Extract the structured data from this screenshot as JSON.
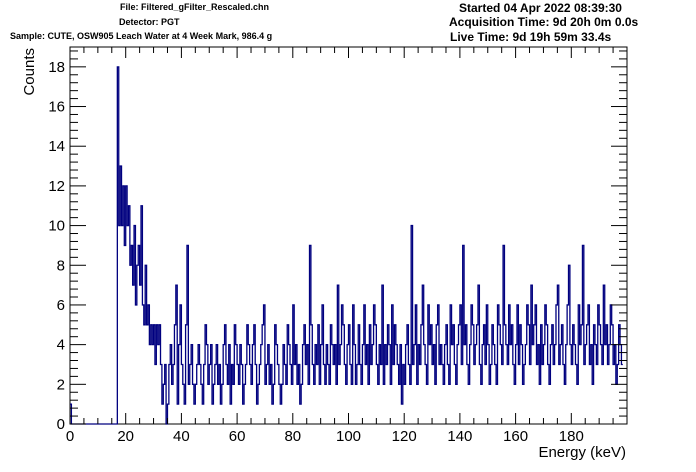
{
  "header": {
    "file": "File: Filtered_gFilter_Rescaled.chn",
    "detector": "Detector: PGT",
    "sample": "Sample: CUTE, OSW905 Leach Water at 4 Week Mark, 986.4 g",
    "started": "Started 04 Apr 2022 08:39:30",
    "acquisition": "Acquisition Time: 9d 20h 0m 0.0s",
    "live": "Live Time: 9d 19h 59m 33.4s"
  },
  "chart_data": {
    "type": "histogram",
    "title": "",
    "xlabel": "Energy (keV)",
    "ylabel": "Counts",
    "xlim": [
      0,
      200
    ],
    "ylim": [
      0,
      19
    ],
    "x_ticks": [
      0,
      20,
      40,
      60,
      80,
      100,
      120,
      140,
      160,
      180
    ],
    "y_ticks": [
      0,
      2,
      4,
      6,
      8,
      10,
      12,
      14,
      16,
      18
    ],
    "line_color": "#00007f",
    "bin_width_keV": 0.5,
    "start_keV": 0,
    "grid": false,
    "counts": [
      1,
      0,
      0,
      0,
      0,
      0,
      0,
      0,
      0,
      0,
      0,
      0,
      0,
      0,
      0,
      0,
      0,
      0,
      0,
      0,
      0,
      0,
      0,
      0,
      0,
      0,
      0,
      0,
      0,
      0,
      0,
      0,
      0,
      0,
      18,
      10,
      13,
      10,
      12,
      9,
      12,
      10,
      11,
      8,
      9,
      7,
      10,
      6,
      8,
      9,
      7,
      11,
      6,
      5,
      8,
      5,
      6,
      4,
      5,
      4,
      5,
      3,
      5,
      4,
      5,
      3,
      1,
      2,
      3,
      0,
      1,
      3,
      4,
      2,
      3,
      5,
      7,
      1,
      4,
      6,
      3,
      2,
      1,
      5,
      9,
      2,
      3,
      4,
      2,
      1,
      2,
      3,
      4,
      3,
      2,
      1,
      3,
      5,
      4,
      2,
      3,
      4,
      1,
      2,
      3,
      4,
      2,
      3,
      1,
      2,
      4,
      5,
      3,
      2,
      4,
      1,
      3,
      2,
      5,
      4,
      3,
      2,
      4,
      3,
      1,
      2,
      3,
      5,
      4,
      3,
      2,
      4,
      5,
      3,
      1,
      2,
      3,
      4,
      5,
      6,
      2,
      3,
      4,
      2,
      3,
      1,
      2,
      5,
      4,
      3,
      2,
      1,
      2,
      4,
      3,
      2,
      5,
      4,
      3,
      2,
      6,
      3,
      4,
      2,
      3,
      1,
      2,
      4,
      5,
      3,
      4,
      2,
      9,
      5,
      3,
      2,
      4,
      3,
      5,
      2,
      4,
      6,
      3,
      2,
      4,
      3,
      2,
      5,
      4,
      3,
      4,
      2,
      7,
      3,
      4,
      6,
      5,
      3,
      2,
      4,
      5,
      3,
      2,
      6,
      4,
      2,
      3,
      5,
      3,
      2,
      4,
      6,
      3,
      4,
      2,
      5,
      3,
      4,
      6,
      5,
      3,
      2,
      4,
      3,
      7,
      2,
      4,
      3,
      5,
      4,
      2,
      6,
      3,
      5,
      4,
      3,
      2,
      4,
      1,
      3,
      2,
      4,
      5,
      3,
      2,
      10,
      3,
      4,
      6,
      2,
      4,
      3,
      5,
      7,
      4,
      3,
      2,
      6,
      4,
      5,
      3,
      4,
      2,
      5,
      6,
      3,
      4,
      3,
      2,
      4,
      5,
      3,
      2,
      6,
      4,
      5,
      3,
      2,
      4,
      5,
      6,
      3,
      9,
      4,
      5,
      3,
      2,
      4,
      6,
      5,
      3,
      4,
      5,
      7,
      3,
      2,
      4,
      5,
      3,
      6,
      4,
      2,
      3,
      5,
      4,
      3,
      2,
      6,
      5,
      4,
      3,
      9,
      5,
      4,
      3,
      6,
      4,
      5,
      3,
      2,
      4,
      6,
      3,
      5,
      4,
      2,
      3,
      4,
      6,
      5,
      3,
      7,
      4,
      5,
      6,
      3,
      4,
      2,
      5,
      3,
      4,
      6,
      5,
      3,
      2,
      4,
      5,
      3,
      4,
      6,
      7,
      3,
      4,
      5,
      3,
      2,
      4,
      6,
      8,
      4,
      3,
      5,
      4,
      3,
      2,
      6,
      4,
      5,
      9,
      3,
      4,
      5,
      6,
      3,
      4,
      2,
      5,
      4,
      3,
      6,
      5,
      4,
      3,
      7,
      4,
      5,
      3,
      4,
      6,
      5,
      3,
      4,
      2,
      3,
      5,
      4,
      3
    ]
  }
}
